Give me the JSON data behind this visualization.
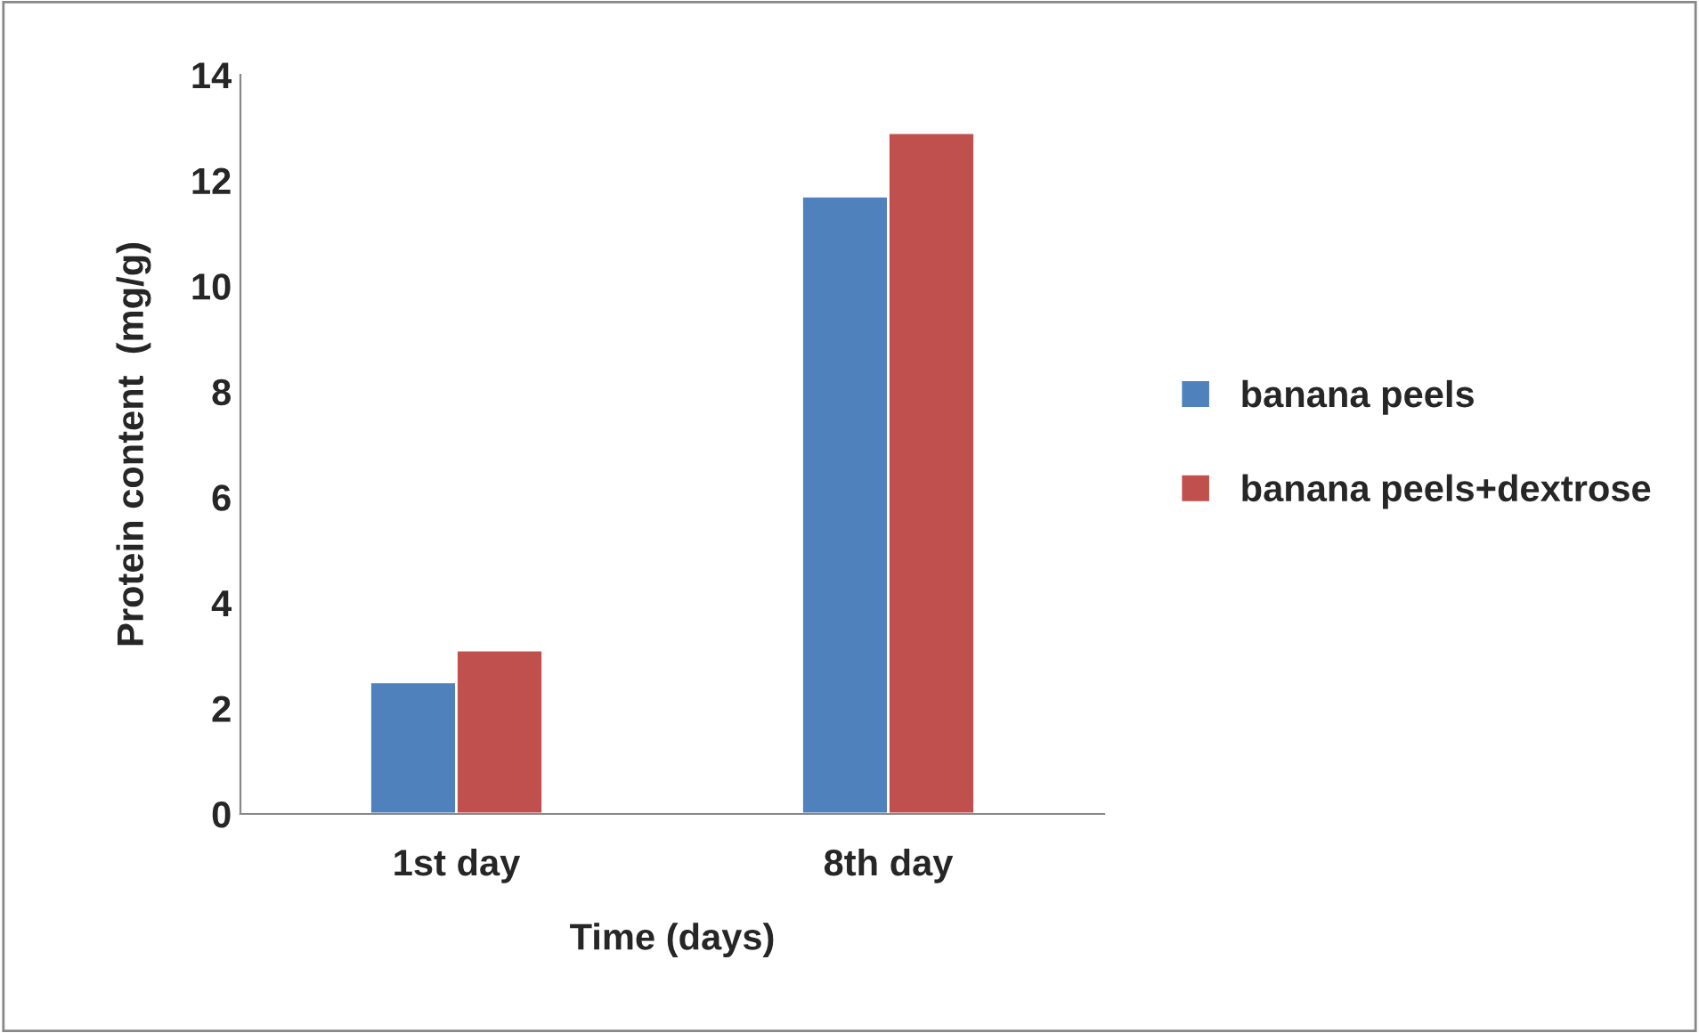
{
  "chart_data": {
    "type": "bar",
    "xlabel": "Time (days)",
    "ylabel": "Protein content  (mg/g)",
    "categories": [
      "1st day",
      "8th day"
    ],
    "series": [
      {
        "name": "banana peels",
        "color": "#4f81bd",
        "values": [
          2.5,
          11.7
        ]
      },
      {
        "name": "banana peels+dextrose",
        "color": "#c0504d",
        "values": [
          3.1,
          12.9
        ]
      }
    ],
    "ylim": [
      0,
      14
    ],
    "yticks": [
      0,
      2,
      4,
      6,
      8,
      10,
      12,
      14
    ],
    "grid": false,
    "legend": "right"
  }
}
